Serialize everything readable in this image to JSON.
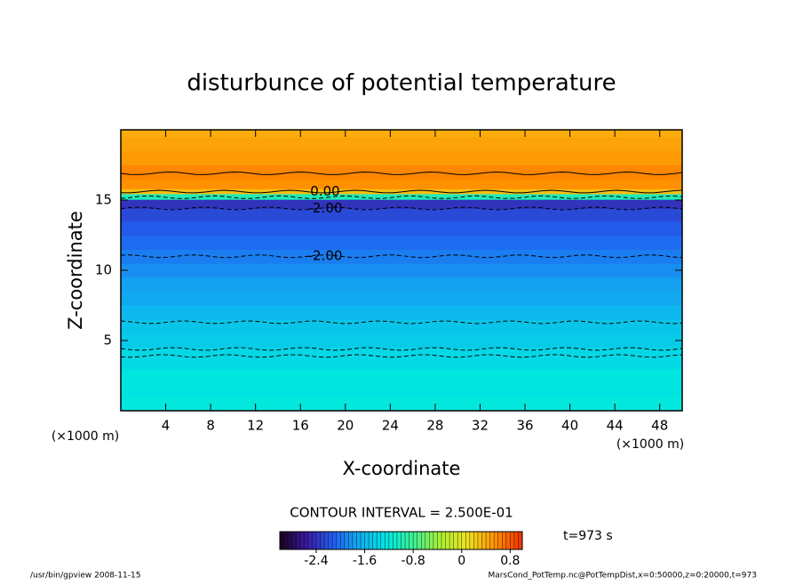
{
  "chart_data": {
    "type": "contour",
    "title": "disturbunce of potential temperature",
    "xlabel": "X-coordinate",
    "ylabel": "Z-coordinate",
    "x_unit": "(×1000 m)",
    "y_unit": "(×1000 m)",
    "xlim": [
      0,
      50
    ],
    "ylim": [
      0,
      20
    ],
    "xticks": [
      4,
      8,
      12,
      16,
      20,
      24,
      28,
      32,
      36,
      40,
      44,
      48
    ],
    "yticks": [
      5,
      10,
      15
    ],
    "field": {
      "z": [
        0,
        2,
        4,
        5,
        6,
        7,
        8,
        9,
        10,
        11,
        12,
        13,
        14,
        14.8,
        15.3,
        15.6,
        16,
        17,
        18,
        19,
        20
      ],
      "values": [
        -1.2,
        -1.25,
        -1.35,
        -1.45,
        -1.5,
        -1.6,
        -1.7,
        -1.75,
        -1.85,
        -1.95,
        -2.05,
        -2.15,
        -2.25,
        -2.4,
        -1.0,
        0.3,
        0.55,
        0.6,
        0.5,
        0.45,
        0.4
      ]
    },
    "contours": [
      {
        "level": 0.5,
        "z": 16.9
      },
      {
        "level": 0,
        "z": 15.6,
        "label": "0.00"
      },
      {
        "level": -1,
        "z": 15.2
      },
      {
        "level": -2,
        "z": 14.4,
        "label": "-2.00"
      },
      {
        "level": -2,
        "z": 11,
        "label": "-2.00"
      },
      {
        "level": -1.5,
        "z": 6.3
      },
      {
        "level": -1.25,
        "z": 4.4
      },
      {
        "level": -1.25,
        "z": 3.9
      }
    ],
    "contour_interval": "CONTOUR INTERVAL = 2.500E-01",
    "time": "t=973 s",
    "colorbar": {
      "lim": [
        -3,
        1
      ],
      "ticks": [
        -2.4,
        -1.6,
        -0.8,
        0,
        0.8
      ],
      "colormap": [
        "#1a001a",
        "#3a1aa0",
        "#2060f0",
        "#10b0f0",
        "#00e8e0",
        "#40f090",
        "#b0f030",
        "#f0e020",
        "#ff9000",
        "#f03000"
      ]
    },
    "footer_left": "/usr/bin/gpview   2008-11-15",
    "footer_right": "MarsCond_PotTemp.nc@PotTempDist,x=0:50000,z=0:20000,t=973"
  }
}
